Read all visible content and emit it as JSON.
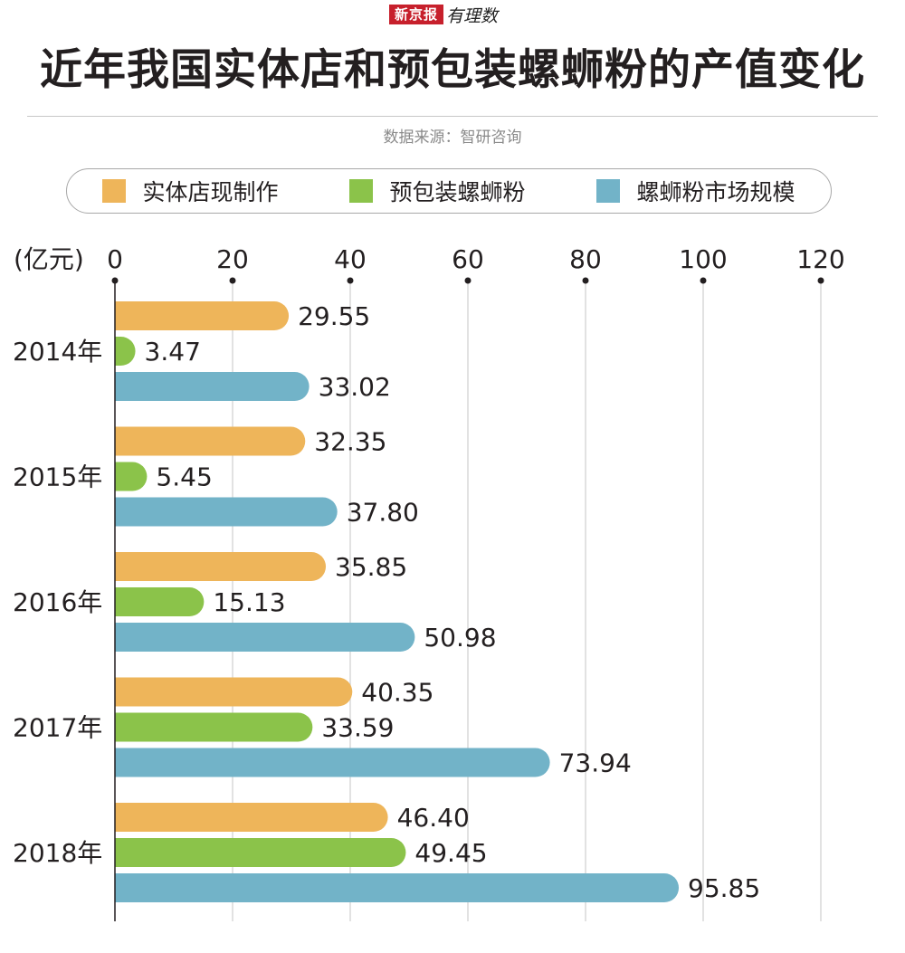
{
  "header": {
    "brand_box": "新京报",
    "brand_script": "有理数",
    "title": "近年我国实体店和预包装螺蛳粉的产值变化",
    "source": "数据来源：智研咨询"
  },
  "colors": {
    "store": "#eeb55a",
    "packaged": "#8bc34a",
    "market": "#72b3c8",
    "grid": "#d9d9d9",
    "axis": "#231f20"
  },
  "chart_data": {
    "type": "bar",
    "orientation": "horizontal",
    "unit_label": "(亿元)",
    "xlim": [
      0,
      120
    ],
    "xticks": [
      "0",
      "20",
      "40",
      "60",
      "80",
      "100",
      "120"
    ],
    "categories": [
      "2014年",
      "2015年",
      "2016年",
      "2017年",
      "2018年"
    ],
    "series": [
      {
        "name": "实体店现制作",
        "values": [
          29.55,
          32.35,
          35.85,
          40.35,
          46.4
        ],
        "labels": [
          "29.55",
          "32.35",
          "35.85",
          "40.35",
          "46.40"
        ]
      },
      {
        "name": "预包装螺蛳粉",
        "values": [
          3.47,
          5.45,
          15.13,
          33.59,
          49.45
        ],
        "labels": [
          "3.47",
          "5.45",
          "15.13",
          "33.59",
          "49.45"
        ]
      },
      {
        "name": "螺蛳粉市场规模",
        "values": [
          33.02,
          37.8,
          50.98,
          73.94,
          95.85
        ],
        "labels": [
          "33.02",
          "37.80",
          "50.98",
          "73.94",
          "95.85"
        ]
      }
    ],
    "legend_position": "top",
    "grid": true
  }
}
